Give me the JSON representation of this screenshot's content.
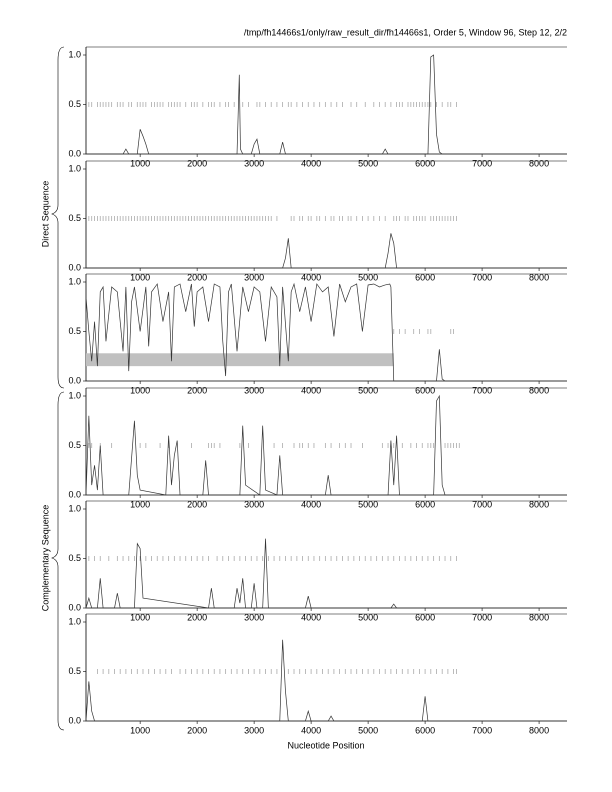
{
  "header": {
    "title": "/tmp/fh14466s1/only/raw_result_dir/fh14466s1, Order 5, Window 96, Step 12, 2/2"
  },
  "groups": [
    {
      "label": "Direct Sequence"
    },
    {
      "label": "Complementary Sequence"
    }
  ],
  "x_label": "Nucleotide Position",
  "chart_data": [
    {
      "type": "line",
      "color": "#333333",
      "marker_color": "#aaaaaa",
      "xlim": [
        50,
        8490
      ],
      "ylim": [
        0,
        1
      ],
      "xticks": [
        1000,
        2000,
        3000,
        4000,
        5000,
        6000,
        7000,
        8000
      ],
      "yticks": [
        {
          "value": 0,
          "label": "0.0"
        },
        0.5,
        {
          "value": 1,
          "label": "1.0"
        }
      ],
      "x": [
        50,
        700,
        750,
        800,
        950,
        1000,
        1050,
        1100,
        1150,
        2700,
        2740,
        2760,
        2800,
        2950,
        3000,
        3050,
        3100,
        3450,
        3500,
        3550,
        5250,
        5300,
        5350,
        6050,
        6100,
        6150,
        6200,
        6250,
        6300,
        8490
      ],
      "values": [
        0,
        0,
        0.05,
        0,
        0,
        0.25,
        0.18,
        0.1,
        0,
        0,
        0.8,
        0.05,
        0,
        0,
        0.1,
        0.15,
        0,
        0,
        0.12,
        0,
        0,
        0.05,
        0,
        0,
        0.98,
        1.0,
        0.2,
        0.02,
        0,
        0
      ],
      "marker_y": 0.5,
      "marker_x": [
        100,
        150,
        250,
        300,
        350,
        400,
        450,
        500,
        600,
        650,
        700,
        800,
        850,
        950,
        1000,
        1050,
        1100,
        1200,
        1250,
        1300,
        1350,
        1400,
        1500,
        1550,
        1600,
        1650,
        1700,
        1800,
        1900,
        1950,
        2000,
        2100,
        2200,
        2250,
        2300,
        2400,
        2500,
        2550,
        2650,
        2800,
        2900,
        3050,
        3100,
        3200,
        3300,
        3400,
        3500,
        3600,
        3650,
        3750,
        3850,
        3950,
        4050,
        4150,
        4250,
        4350,
        4450,
        4550,
        4700,
        4800,
        4950,
        5100,
        5200,
        5300,
        5400,
        5500,
        5550,
        5600,
        5700,
        5750,
        5800,
        5850,
        5900,
        5950,
        6000,
        6050,
        6100,
        6200,
        6300,
        6400,
        6450,
        6550
      ]
    },
    {
      "type": "line",
      "color": "#333333",
      "marker_color": "#aaaaaa",
      "xlim": [
        50,
        8490
      ],
      "ylim": [
        0,
        1
      ],
      "xticks": [
        1000,
        2000,
        3000,
        4000,
        5000,
        6000,
        7000,
        8000
      ],
      "yticks": [
        {
          "value": 0,
          "label": "0.0"
        },
        0.5,
        {
          "value": 1,
          "label": "1.0"
        }
      ],
      "x": [
        50,
        3500,
        3550,
        3600,
        3650,
        5300,
        5350,
        5400,
        5450,
        5500,
        8490
      ],
      "values": [
        0,
        0,
        0.1,
        0.3,
        0,
        0,
        0.15,
        0.35,
        0.25,
        0,
        0
      ],
      "marker_y": 0.5,
      "marker_x": [
        100,
        150,
        200,
        250,
        300,
        350,
        400,
        450,
        500,
        550,
        600,
        650,
        700,
        750,
        800,
        850,
        900,
        950,
        1000,
        1050,
        1100,
        1150,
        1200,
        1250,
        1300,
        1350,
        1400,
        1450,
        1500,
        1550,
        1600,
        1650,
        1700,
        1750,
        1800,
        1850,
        1900,
        1950,
        2000,
        2050,
        2100,
        2150,
        2200,
        2250,
        2300,
        2350,
        2400,
        2450,
        2500,
        2550,
        2600,
        2650,
        2700,
        2750,
        2800,
        2850,
        2900,
        2950,
        3000,
        3050,
        3100,
        3150,
        3200,
        3250,
        3300,
        3400,
        3650,
        3700,
        3800,
        3850,
        3950,
        4000,
        4100,
        4150,
        4250,
        4350,
        4400,
        4500,
        4550,
        4650,
        4700,
        4800,
        4900,
        5000,
        5100,
        5200,
        5300,
        5450,
        5500,
        5550,
        5650,
        5700,
        5800,
        5850,
        5900,
        5950,
        6000,
        6100,
        6150,
        6200,
        6250,
        6300,
        6350,
        6400,
        6450,
        6500,
        6550
      ]
    },
    {
      "type": "line",
      "color": "#333333",
      "marker_color": "#aaaaaa",
      "xlim": [
        50,
        8490
      ],
      "ylim": [
        0,
        1
      ],
      "xticks": [
        1000,
        2000,
        3000,
        4000,
        5000,
        6000,
        7000,
        8000
      ],
      "yticks": [
        {
          "value": 0,
          "label": "0.0"
        },
        0.5,
        {
          "value": 1,
          "label": "1.0"
        }
      ],
      "x": [
        50,
        100,
        150,
        200,
        250,
        300,
        350,
        400,
        500,
        600,
        700,
        750,
        800,
        850,
        900,
        1000,
        1100,
        1150,
        1200,
        1300,
        1400,
        1500,
        1550,
        1600,
        1700,
        1800,
        1900,
        1950,
        2000,
        2100,
        2200,
        2300,
        2400,
        2450,
        2500,
        2550,
        2600,
        2700,
        2800,
        2900,
        3000,
        3100,
        3200,
        3300,
        3400,
        3450,
        3500,
        3600,
        3650,
        3700,
        3800,
        3900,
        4000,
        4100,
        4200,
        4300,
        4400,
        4500,
        4600,
        4700,
        4800,
        4900,
        5000,
        5100,
        5200,
        5300,
        5380,
        5400,
        5450,
        6200,
        6250,
        6300,
        6350,
        8490
      ],
      "values": [
        0.85,
        0.5,
        0.2,
        0.6,
        0.15,
        0.9,
        0.95,
        0.4,
        0.95,
        0.9,
        0.3,
        0.95,
        0.1,
        0.8,
        0.95,
        0.5,
        0.95,
        0.35,
        0.9,
        0.98,
        0.6,
        0.9,
        0.2,
        0.95,
        0.98,
        0.7,
        0.98,
        0.55,
        0.9,
        0.95,
        0.6,
        0.98,
        0.95,
        0.4,
        0.05,
        0.9,
        0.98,
        0.3,
        0.95,
        0.7,
        0.95,
        0.9,
        0.4,
        0.95,
        0.85,
        0.15,
        0.95,
        0.2,
        0.9,
        0.98,
        0.7,
        0.95,
        0.6,
        0.98,
        0.9,
        0.95,
        0.45,
        0.98,
        0.8,
        0.95,
        0.98,
        0.5,
        0.97,
        0.98,
        0.95,
        0.97,
        0.98,
        0.95,
        0,
        0,
        0.32,
        0.02,
        0,
        0
      ],
      "marker_y": 0.5,
      "marker_x": [
        5450,
        5550,
        5650,
        5800,
        5900,
        6050,
        6100,
        6450,
        6500
      ],
      "shade": {
        "color": "#c0c0c0",
        "x": [
          50,
          5450
        ],
        "y": [
          0.15,
          0.28
        ]
      }
    },
    {
      "type": "line",
      "color": "#333333",
      "marker_color": "#aaaaaa",
      "xlim": [
        50,
        8490
      ],
      "ylim": [
        0,
        1
      ],
      "xticks": [
        1000,
        2000,
        3000,
        4000,
        5000,
        6000,
        7000,
        8000
      ],
      "yticks": [
        {
          "value": 0,
          "label": "0.0"
        },
        0.5,
        {
          "value": 1,
          "label": "1.0"
        }
      ],
      "x": [
        50,
        100,
        150,
        200,
        250,
        300,
        350,
        800,
        900,
        950,
        1000,
        1450,
        1500,
        1550,
        1600,
        1650,
        1700,
        2100,
        2150,
        2200,
        2750,
        2800,
        2850,
        3100,
        3150,
        3200,
        3400,
        3450,
        3500,
        4250,
        4300,
        4350,
        5350,
        5400,
        5450,
        5500,
        5550,
        6150,
        6200,
        6250,
        6300,
        6350,
        8490
      ],
      "values": [
        0,
        0.8,
        0.1,
        0.3,
        0.05,
        0.5,
        0,
        0,
        0.75,
        0.2,
        0.05,
        0,
        0.6,
        0.1,
        0.4,
        0.55,
        0,
        0,
        0.35,
        0,
        0,
        0.7,
        0.1,
        0,
        0.7,
        0.05,
        0,
        0.4,
        0,
        0,
        0.2,
        0,
        0,
        0.55,
        0.1,
        0.6,
        0,
        0,
        0.95,
        1.0,
        0.1,
        0,
        0
      ],
      "marker_y": 0.5,
      "marker_x": [
        100,
        150,
        300,
        500,
        1000,
        1100,
        1350,
        1500,
        1900,
        2200,
        2250,
        2300,
        2400,
        2750,
        2900,
        3350,
        3500,
        3700,
        3800,
        3850,
        3950,
        4050,
        4250,
        4350,
        4500,
        4600,
        4700,
        4900,
        5250,
        5350,
        5450,
        5600,
        5750,
        5850,
        5950,
        6050,
        6100,
        6150,
        6350,
        6400,
        6450,
        6500,
        6550,
        6600
      ]
    },
    {
      "type": "line",
      "color": "#333333",
      "marker_color": "#aaaaaa",
      "xlim": [
        50,
        8490
      ],
      "ylim": [
        0,
        1
      ],
      "xticks": [
        1000,
        2000,
        3000,
        4000,
        5000,
        6000,
        7000,
        8000
      ],
      "yticks": [
        {
          "value": 0,
          "label": "0.0"
        },
        0.5,
        {
          "value": 1,
          "label": "1.0"
        }
      ],
      "x": [
        50,
        100,
        150,
        250,
        300,
        350,
        550,
        600,
        650,
        900,
        950,
        1000,
        1050,
        2200,
        2250,
        2300,
        2650,
        2700,
        2750,
        2800,
        2850,
        2950,
        3000,
        3050,
        3150,
        3200,
        3250,
        3900,
        3950,
        4000,
        5400,
        5450,
        5500,
        8490
      ],
      "values": [
        0,
        0.1,
        0,
        0,
        0.3,
        0,
        0,
        0.15,
        0,
        0,
        0.65,
        0.6,
        0.1,
        0,
        0.2,
        0,
        0,
        0.2,
        0.05,
        0.3,
        0,
        0,
        0.25,
        0,
        0,
        0.7,
        0,
        0,
        0.12,
        0,
        0,
        0.04,
        0,
        0
      ],
      "marker_y": 0.5,
      "marker_x": [
        100,
        200,
        300,
        450,
        600,
        700,
        800,
        900,
        1000,
        1100,
        1200,
        1300,
        1400,
        1500,
        1600,
        1700,
        1800,
        1900,
        2000,
        2100,
        2200,
        2350,
        2450,
        2550,
        2650,
        2750,
        2850,
        2950,
        3050,
        3150,
        3250,
        3350,
        3450,
        3550,
        3650,
        3750,
        3850,
        3950,
        4050,
        4150,
        4250,
        4350,
        4450,
        4550,
        4650,
        4750,
        4850,
        4950,
        5050,
        5150,
        5250,
        5350,
        5450,
        5550,
        5650,
        5750,
        5850,
        5950,
        6050,
        6150,
        6250,
        6350,
        6450,
        6550
      ]
    },
    {
      "type": "line",
      "color": "#333333",
      "marker_color": "#aaaaaa",
      "xlim": [
        50,
        8490
      ],
      "ylim": [
        0,
        1
      ],
      "xticks": [
        1000,
        2000,
        3000,
        4000,
        5000,
        6000,
        7000,
        8000
      ],
      "yticks": [
        {
          "value": 0,
          "label": "0.0"
        },
        0.5,
        {
          "value": 1,
          "label": "1.0"
        }
      ],
      "x": [
        50,
        100,
        150,
        200,
        3450,
        3500,
        3550,
        3600,
        3900,
        3950,
        4000,
        4300,
        4350,
        4400,
        5950,
        6000,
        6050,
        8490
      ],
      "values": [
        0,
        0.4,
        0.1,
        0,
        0,
        0.82,
        0.3,
        0,
        0,
        0.1,
        0,
        0,
        0.05,
        0,
        0,
        0.25,
        0,
        0
      ],
      "marker_y": 0.5,
      "marker_x": [
        250,
        350,
        450,
        550,
        650,
        750,
        850,
        950,
        1050,
        1150,
        1250,
        1350,
        1450,
        1550,
        1700,
        1800,
        1900,
        2000,
        2100,
        2200,
        2300,
        2400,
        2500,
        2600,
        2700,
        2800,
        2900,
        3000,
        3100,
        3200,
        3300,
        3400,
        3600,
        3700,
        3800,
        3900,
        4000,
        4100,
        4200,
        4300,
        4400,
        4500,
        4600,
        4700,
        4800,
        4900,
        5000,
        5100,
        5200,
        5300,
        5400,
        5500,
        5600,
        5700,
        5800,
        5900,
        6000,
        6100,
        6200,
        6300,
        6400,
        6500,
        6550
      ]
    }
  ]
}
